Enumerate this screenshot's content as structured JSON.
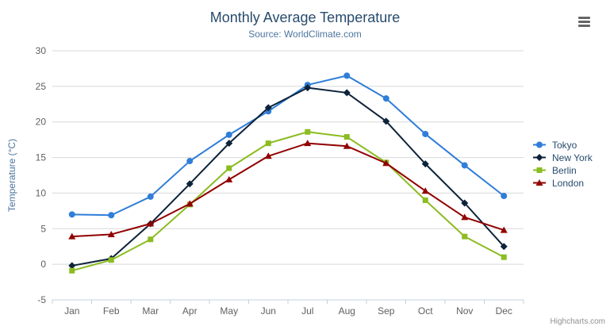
{
  "chart": {
    "title": "Monthly Average Temperature",
    "subtitle": "Source: WorldClimate.com",
    "y_axis_title": "Temperature (°C)",
    "credit": "Highcharts.com"
  },
  "colors": {
    "grid_line": "#D8D8D8",
    "axis_line": "#C0D0E0",
    "tick_label": "#606060",
    "title": "#274b6d",
    "subtitle": "#4d759e",
    "legend_text": "#274b6d",
    "credit_text": "#909090"
  },
  "chart_data": {
    "type": "line",
    "title": "Monthly Average Temperature",
    "subtitle": "Source: WorldClimate.com",
    "xlabel": "",
    "ylabel": "Temperature (°C)",
    "ylim": [
      -5,
      30
    ],
    "y_ticks": [
      -5,
      0,
      5,
      10,
      15,
      20,
      25,
      30
    ],
    "grid": true,
    "legend_position": "right",
    "categories": [
      "Jan",
      "Feb",
      "Mar",
      "Apr",
      "May",
      "Jun",
      "Jul",
      "Aug",
      "Sep",
      "Oct",
      "Nov",
      "Dec"
    ],
    "series": [
      {
        "name": "Tokyo",
        "color": "#2f7ed8",
        "marker": "circle",
        "values": [
          7.0,
          6.9,
          9.5,
          14.5,
          18.2,
          21.5,
          25.2,
          26.5,
          23.3,
          18.3,
          13.9,
          9.6
        ]
      },
      {
        "name": "New York",
        "color": "#0d233a",
        "marker": "diamond",
        "values": [
          -0.2,
          0.8,
          5.7,
          11.3,
          17.0,
          22.0,
          24.8,
          24.1,
          20.1,
          14.1,
          8.6,
          2.5
        ]
      },
      {
        "name": "Berlin",
        "color": "#8bbc21",
        "marker": "square",
        "values": [
          -0.9,
          0.6,
          3.5,
          8.4,
          13.5,
          17.0,
          18.6,
          17.9,
          14.3,
          9.0,
          3.9,
          1.0
        ]
      },
      {
        "name": "London",
        "color": "#910000",
        "marker": "triangle",
        "values": [
          3.9,
          4.2,
          5.7,
          8.5,
          11.9,
          15.2,
          17.0,
          16.6,
          14.2,
          10.3,
          6.6,
          4.8
        ]
      }
    ]
  }
}
